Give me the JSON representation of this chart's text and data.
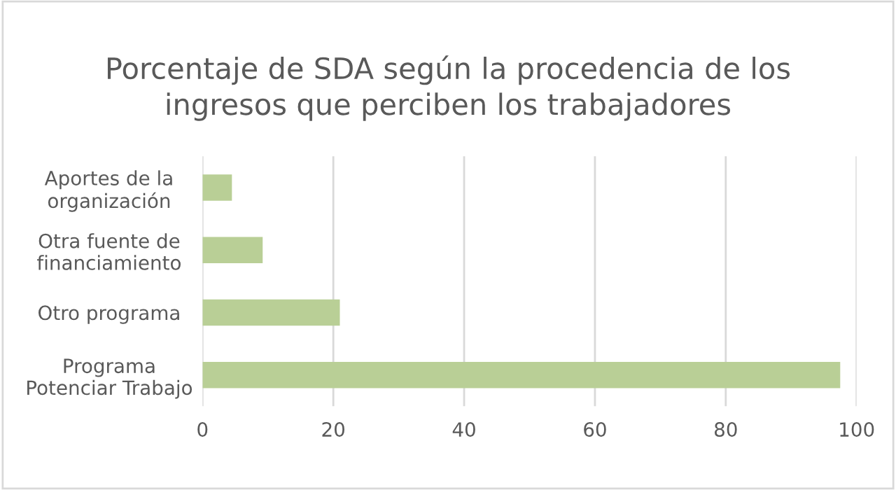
{
  "chart_data": {
    "type": "bar",
    "orientation": "horizontal",
    "title": "Porcentaje de SDA según la procedencia de los\ningresos que perciben los trabajadores",
    "categories": [
      "Aportes de la\norganización",
      "Otra fuente de\nfinanciamiento",
      "Otro programa",
      "Programa\nPotenciar Trabajo"
    ],
    "values": [
      4.5,
      9.2,
      21.0,
      97.5
    ],
    "color": "#b9cf96",
    "xlim": [
      0,
      100
    ],
    "xticks": [
      0,
      20,
      40,
      60,
      80,
      100
    ],
    "grid": "x"
  }
}
